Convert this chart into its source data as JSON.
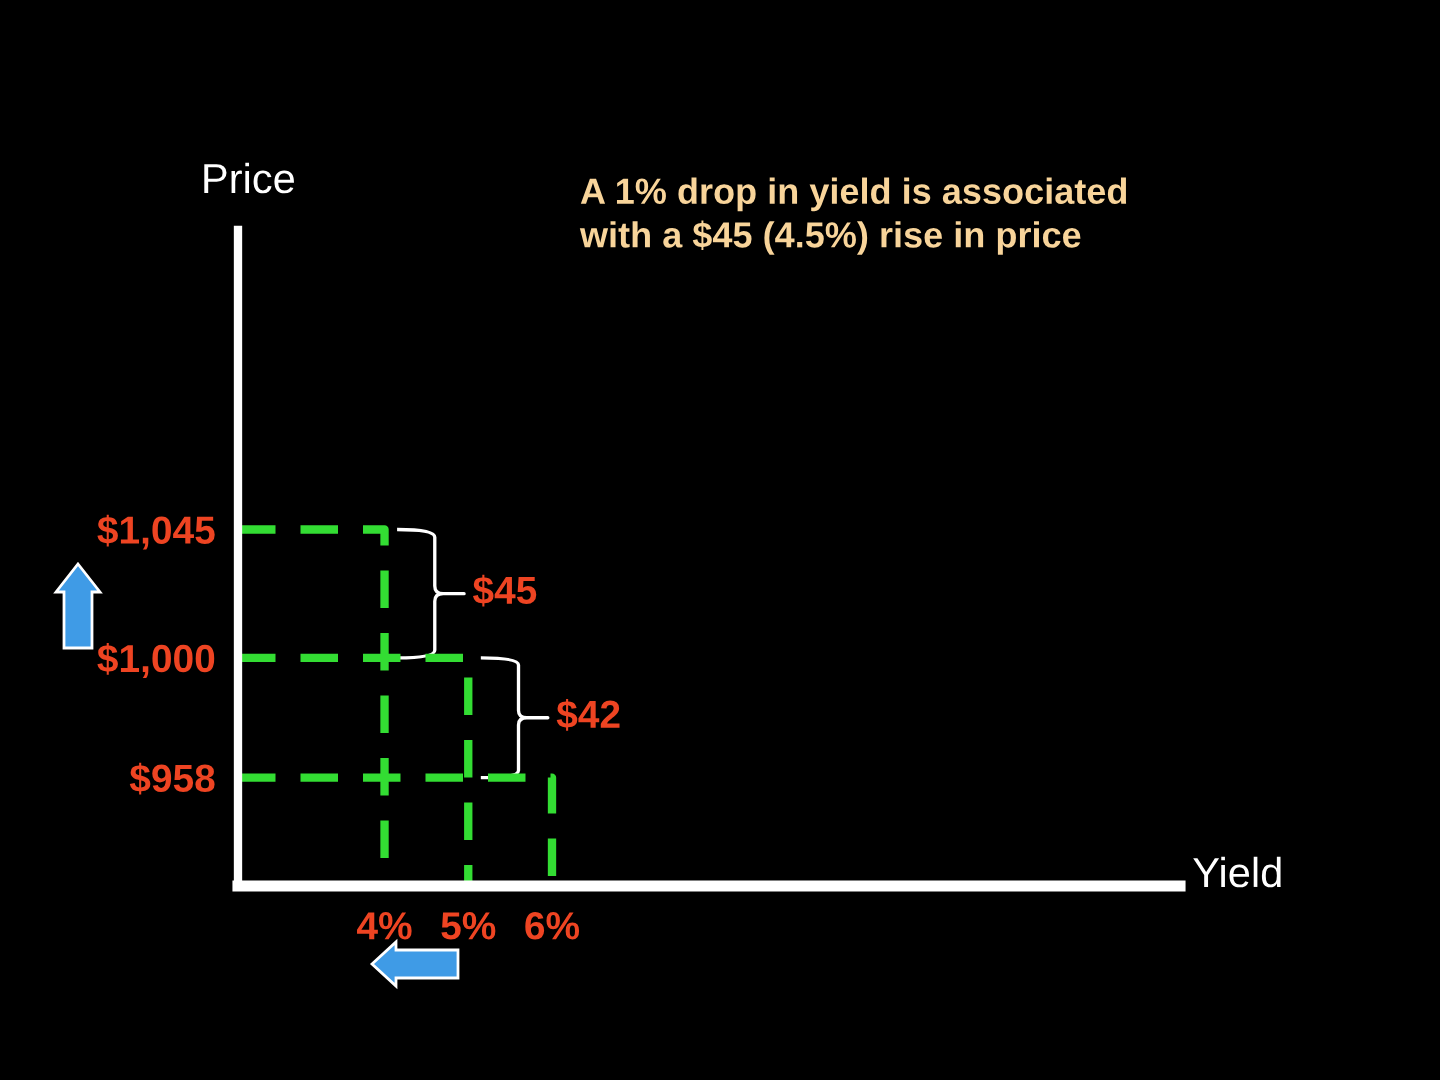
{
  "chart_data": {
    "type": "line",
    "title": "A 1% drop in yield is associated\nwith a $45 (4.5%) rise in price",
    "xlabel": "Yield",
    "ylabel": "Price",
    "series": [
      {
        "x": [
          2.25,
          4,
          4
        ],
        "values": [
          1045,
          1045,
          920
        ],
        "color": "#33dd33"
      },
      {
        "x": [
          2.25,
          5,
          5
        ],
        "values": [
          1000,
          1000,
          920
        ],
        "color": "#33dd33"
      },
      {
        "x": [
          2.25,
          6,
          6
        ],
        "values": [
          958,
          958,
          920
        ],
        "color": "#33dd33"
      }
    ],
    "xlim": [
      2.25,
      13.5
    ],
    "ylim": [
      920,
      1150
    ],
    "xticks": [
      {
        "value": 4,
        "label": "4%"
      },
      {
        "value": 5,
        "label": "5%"
      },
      {
        "value": 6,
        "label": "6%"
      }
    ],
    "yticks": [
      {
        "value": 958,
        "label": "$958"
      },
      {
        "value": 1000,
        "label": "$1,000"
      },
      {
        "value": 1045,
        "label": "$1,045"
      }
    ],
    "line_style": "dashed",
    "marker": "none",
    "annotations": [
      {
        "text": "$45",
        "x": 4,
        "y": 1022.5
      },
      {
        "text": "$42",
        "x": 5,
        "y": 979
      }
    ]
  }
}
